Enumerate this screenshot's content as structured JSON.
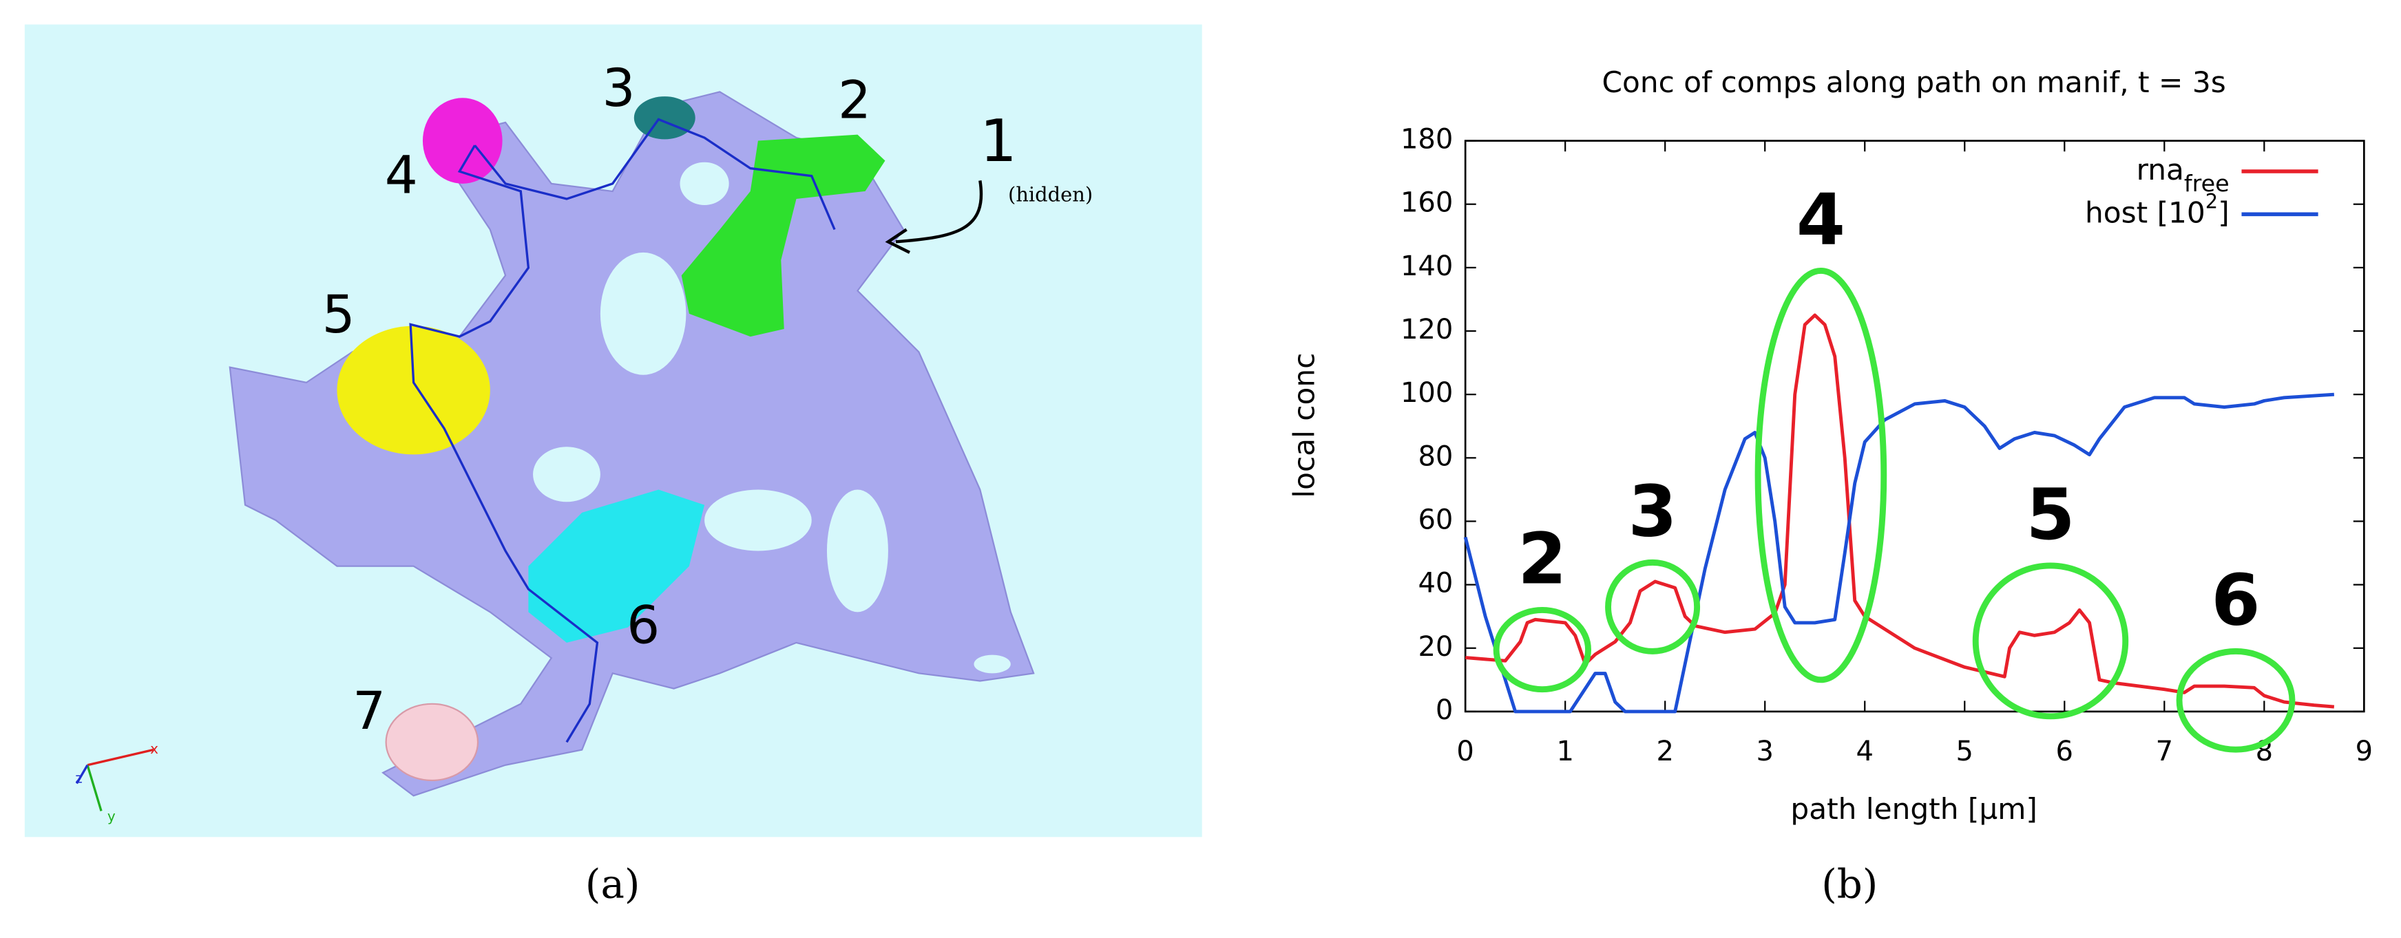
{
  "figure_a": {
    "region_labels": [
      "1",
      "2",
      "3",
      "4",
      "5",
      "6",
      "7"
    ],
    "note": "(hidden)",
    "axis_letters": [
      "x",
      "y",
      "z"
    ],
    "caption": "(a)"
  },
  "chart_data": {
    "type": "line",
    "title": "Conc of comps along path on manif, t = 3s",
    "x_label": "path length [µm]",
    "y_label": "local conc",
    "caption": "(b)",
    "xlim": [
      0,
      9
    ],
    "ylim": [
      0,
      180
    ],
    "xticks": [
      0,
      1,
      2,
      3,
      4,
      5,
      6,
      7,
      8,
      9
    ],
    "yticks": [
      0,
      20,
      40,
      60,
      80,
      100,
      120,
      140,
      160,
      180
    ],
    "grid": false,
    "legend": "top-right",
    "series": [
      {
        "name_parts": [
          {
            "text": "rna"
          },
          {
            "text": "free",
            "shift": "sub"
          }
        ],
        "color": "#e8202a",
        "x": [
          0,
          0.4,
          0.55,
          0.62,
          0.7,
          1.0,
          1.1,
          1.2,
          1.3,
          1.5,
          1.65,
          1.75,
          1.9,
          2.1,
          2.2,
          2.3,
          2.6,
          2.9,
          3.1,
          3.2,
          3.3,
          3.4,
          3.5,
          3.6,
          3.7,
          3.8,
          3.9,
          4.0,
          4.5,
          5.0,
          5.4,
          5.45,
          5.55,
          5.7,
          5.9,
          6.05,
          6.15,
          6.25,
          6.35,
          6.5,
          7.0,
          7.2,
          7.3,
          7.6,
          7.9,
          8.0,
          8.2,
          8.5,
          8.7
        ],
        "values": [
          17,
          16,
          22,
          28,
          29,
          28,
          24,
          15,
          18,
          22,
          28,
          38,
          41,
          39,
          30,
          27,
          25,
          26,
          31,
          40,
          100,
          122,
          125,
          122,
          112,
          80,
          35,
          30,
          20,
          14,
          11,
          20,
          25,
          24,
          25,
          28,
          32,
          28,
          10,
          9,
          7,
          6,
          8,
          8,
          7.5,
          5,
          3,
          2,
          1.5
        ]
      },
      {
        "name_parts": [
          {
            "text": "host [10"
          },
          {
            "text": "2",
            "shift": "super"
          },
          {
            "text": "]"
          }
        ],
        "color": "#1c4fd6",
        "x": [
          0,
          0.2,
          0.35,
          0.45,
          0.5,
          0.8,
          1.05,
          1.3,
          1.4,
          1.5,
          1.6,
          2.1,
          2.2,
          2.4,
          2.6,
          2.8,
          2.9,
          3.0,
          3.1,
          3.2,
          3.3,
          3.5,
          3.7,
          3.8,
          3.9,
          4.0,
          4.2,
          4.5,
          4.8,
          5.0,
          5.2,
          5.35,
          5.5,
          5.7,
          5.9,
          6.1,
          6.25,
          6.35,
          6.6,
          6.9,
          7.2,
          7.3,
          7.6,
          7.9,
          8.0,
          8.2,
          8.7
        ],
        "values": [
          55,
          30,
          15,
          5,
          0,
          0,
          0,
          12,
          12,
          3,
          0,
          0,
          15,
          45,
          70,
          86,
          88,
          80,
          60,
          33,
          28,
          28,
          29,
          50,
          72,
          85,
          92,
          97,
          98,
          96,
          90,
          83,
          86,
          88,
          87,
          84,
          81,
          86,
          96,
          99,
          99,
          97,
          96,
          97,
          98,
          99,
          100
        ]
      }
    ],
    "annotations": [
      {
        "label": "2",
        "x_range": [
          0.31,
          1.23
        ],
        "y_range": [
          7,
          32
        ]
      },
      {
        "label": "3",
        "x_range": [
          1.43,
          2.32
        ],
        "y_range": [
          19,
          47
        ]
      },
      {
        "label": "4",
        "x_range": [
          2.93,
          4.19
        ],
        "y_range": [
          10,
          139
        ]
      },
      {
        "label": "5",
        "x_range": [
          5.11,
          6.61
        ],
        "y_range": [
          -1.5,
          46
        ]
      },
      {
        "label": "6",
        "x_range": [
          7.15,
          8.28
        ],
        "y_range": [
          -12,
          19
        ]
      }
    ]
  }
}
